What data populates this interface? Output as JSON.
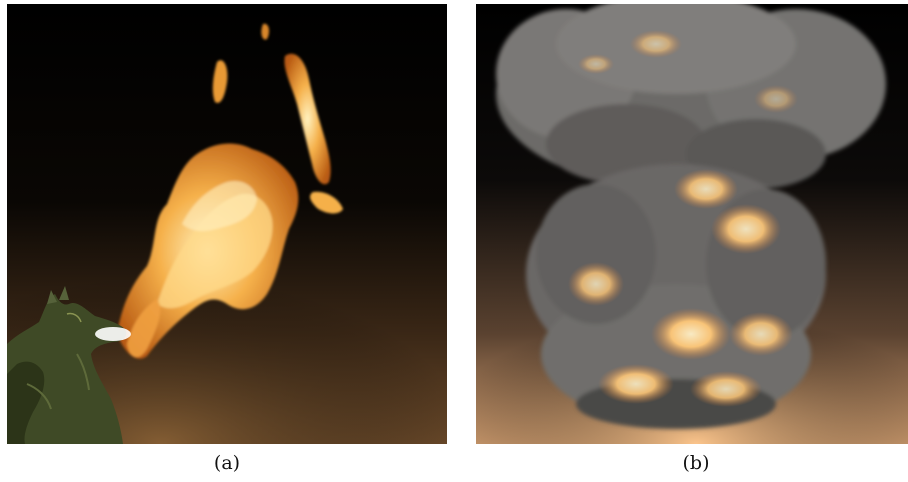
{
  "figure": {
    "panels": [
      {
        "label": "(a)",
        "scene": "fire-breathing-dragon",
        "colors": {
          "background_top": "#000000",
          "background_bottom": "#6b4a2a",
          "flame_core": "#fff2c0",
          "flame_mid": "#f5b04a",
          "flame_edge": "#b85a12",
          "dragon": "#3f4a26"
        }
      },
      {
        "label": "(b)",
        "scene": "smoke-and-fire-plume",
        "colors": {
          "background_top": "#000000",
          "background_bottom": "#d9a474",
          "smoke": "#7a7876",
          "smoke_shadow": "#4a4846",
          "glow": "#ffc878"
        }
      }
    ]
  }
}
